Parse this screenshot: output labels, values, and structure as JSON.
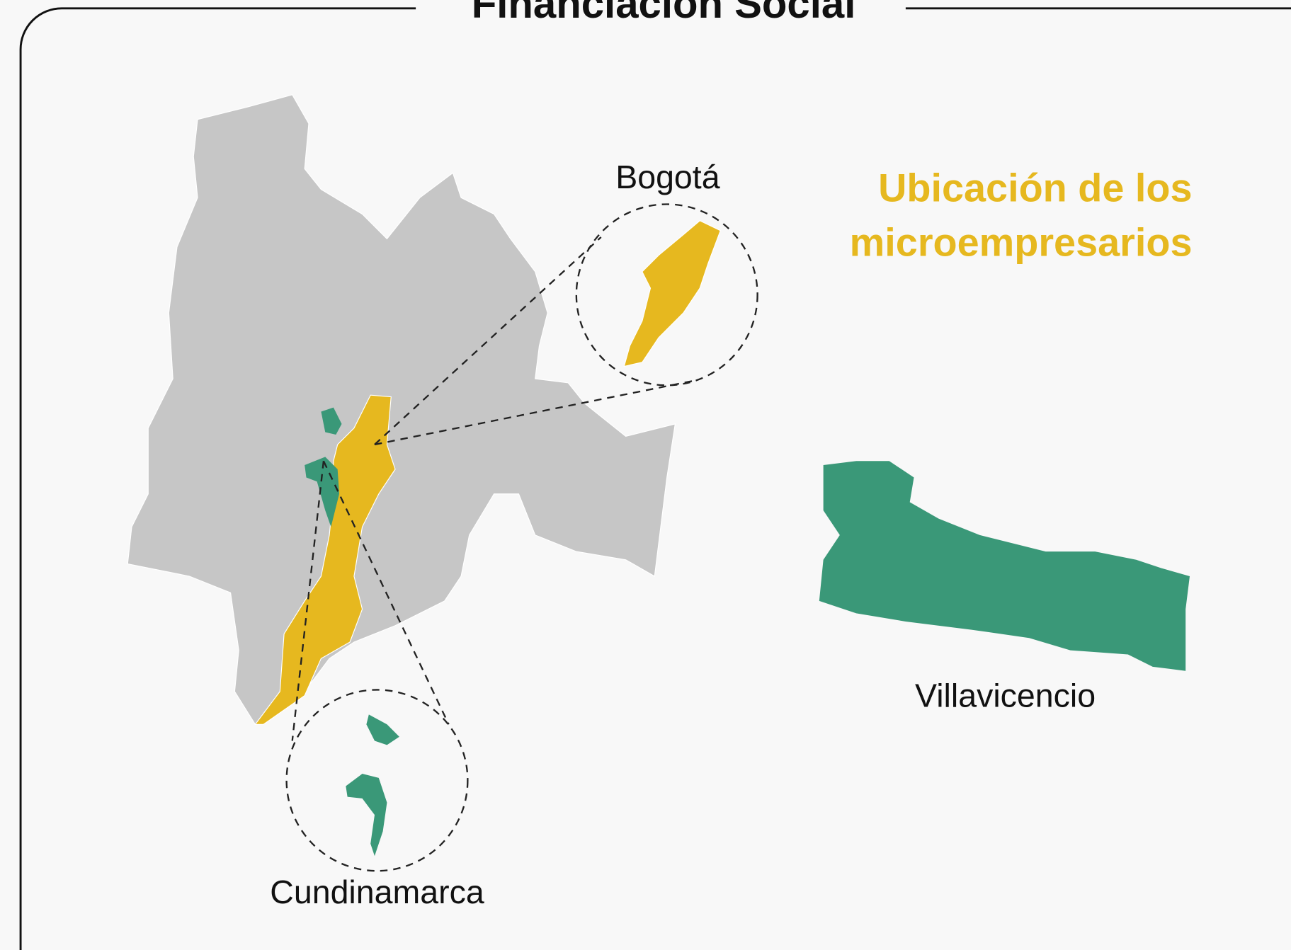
{
  "title": "Financiación Social",
  "heading": [
    "Ubicación de los",
    "microempresarios"
  ],
  "regions": [
    {
      "label": "Bogotá"
    },
    {
      "label": "Cundinamarca"
    },
    {
      "label": "Villavicencio"
    }
  ]
}
